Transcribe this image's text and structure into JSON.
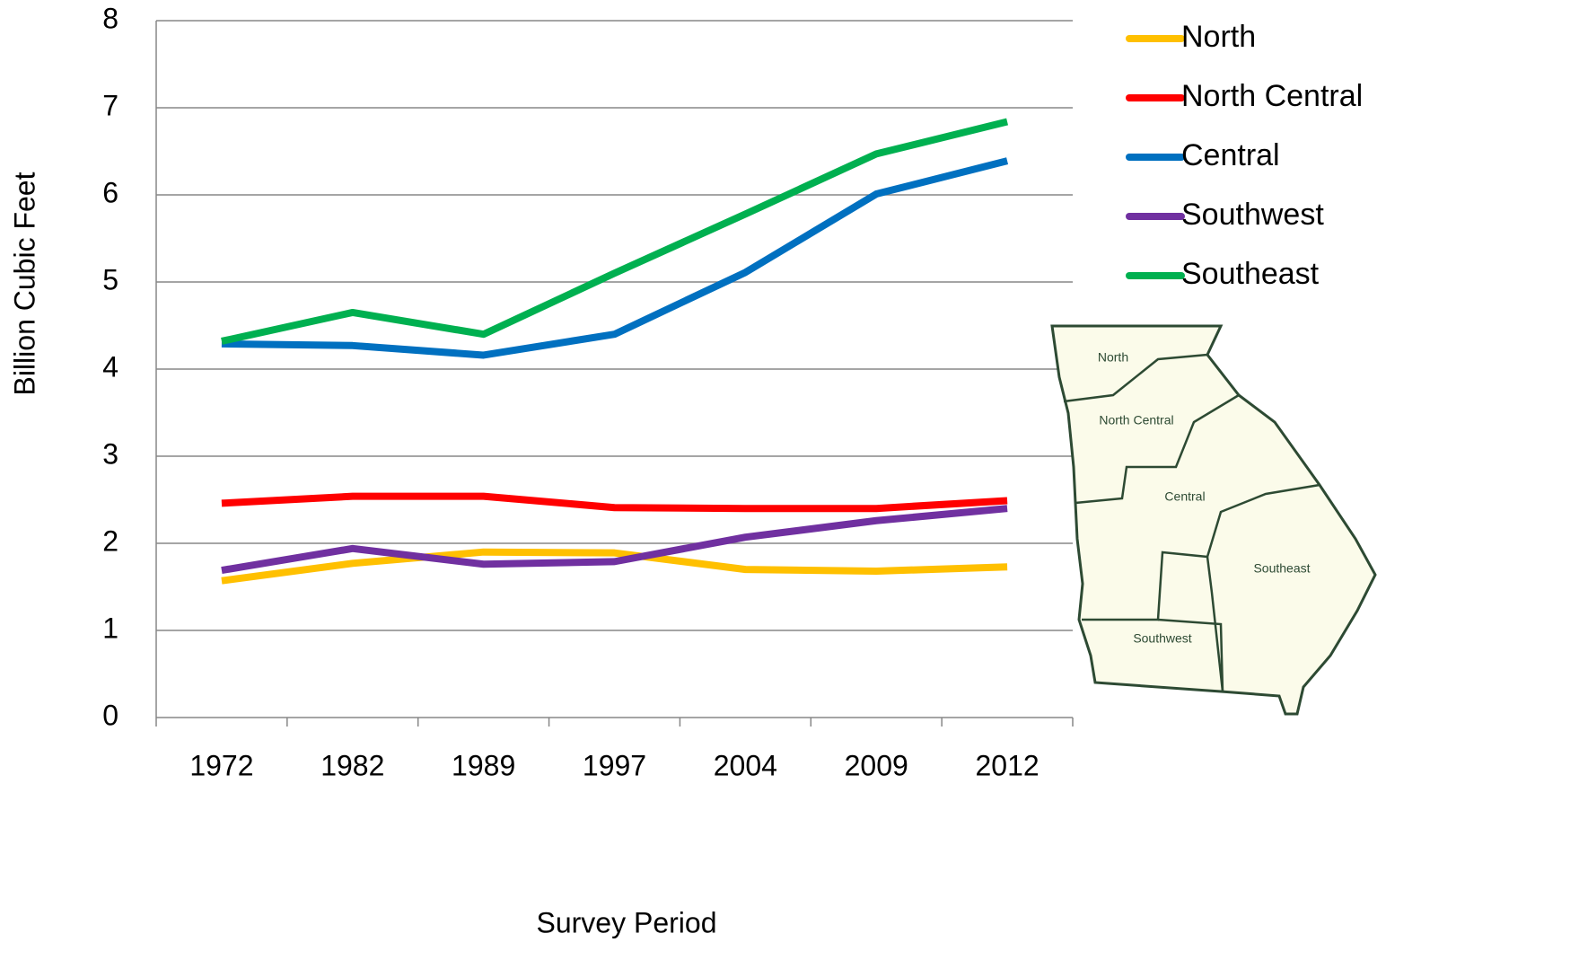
{
  "chart_data": {
    "type": "line",
    "x_label": "Survey Period",
    "y_label": "Billion Cubic Feet",
    "categories": [
      "1972",
      "1982",
      "1989",
      "1997",
      "2004",
      "2009",
      "2012"
    ],
    "series": [
      {
        "name": "North",
        "color": "#ffc000",
        "values": [
          1.57,
          1.77,
          1.9,
          1.89,
          1.7,
          1.68,
          1.73
        ]
      },
      {
        "name": "North Central",
        "color": "#ff0000",
        "values": [
          2.46,
          2.54,
          2.54,
          2.41,
          2.4,
          2.4,
          2.49
        ]
      },
      {
        "name": "Central",
        "color": "#0070c0",
        "values": [
          4.29,
          4.27,
          4.16,
          4.4,
          5.11,
          6.01,
          6.39
        ]
      },
      {
        "name": "Southwest",
        "color": "#7030a0",
        "values": [
          1.69,
          1.94,
          1.76,
          1.79,
          2.07,
          2.26,
          2.4
        ]
      },
      {
        "name": "Southeast",
        "color": "#00b050",
        "values": [
          4.32,
          4.65,
          4.4,
          5.1,
          5.78,
          6.47,
          6.84
        ]
      }
    ],
    "ylim": [
      0,
      8
    ],
    "yticks": [
      0,
      1,
      2,
      3,
      4,
      5,
      6,
      7,
      8
    ],
    "grid": true,
    "legend": "right",
    "map_labels": [
      "North",
      "North Central",
      "Central",
      "Southeast",
      "Southwest"
    ]
  }
}
